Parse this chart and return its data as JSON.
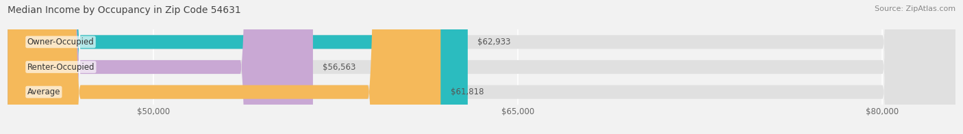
{
  "title": "Median Income by Occupancy in Zip Code 54631",
  "source": "Source: ZipAtlas.com",
  "categories": [
    "Owner-Occupied",
    "Renter-Occupied",
    "Average"
  ],
  "values": [
    62933,
    56563,
    61818
  ],
  "bar_colors": [
    "#2bbcbf",
    "#c9a8d4",
    "#f5b95a"
  ],
  "value_labels": [
    "$62,933",
    "$56,563",
    "$61,818"
  ],
  "xlim_min": 44000,
  "xlim_max": 83000,
  "xticks": [
    50000,
    65000,
    80000
  ],
  "xtick_labels": [
    "$50,000",
    "$65,000",
    "$80,000"
  ],
  "bar_height": 0.55,
  "background_color": "#f2f2f2",
  "bar_bg_color": "#e0e0e0",
  "title_fontsize": 10,
  "label_fontsize": 8.5,
  "tick_fontsize": 8.5,
  "source_fontsize": 8
}
